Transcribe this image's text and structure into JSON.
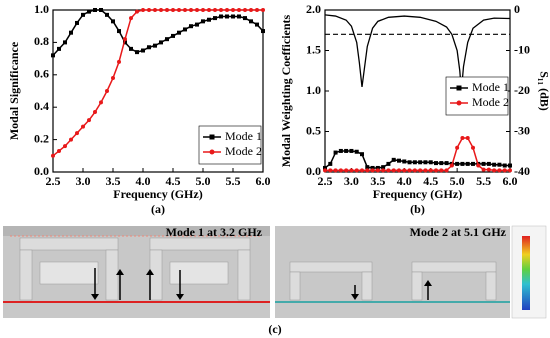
{
  "chart_data": [
    {
      "type": "line",
      "x_label": "Frequency (GHz)",
      "y_label": "Modal Significance",
      "x": [
        2.5,
        2.6,
        2.7,
        2.8,
        2.9,
        3.0,
        3.1,
        3.2,
        3.3,
        3.4,
        3.5,
        3.6,
        3.7,
        3.8,
        3.9,
        4.0,
        4.1,
        4.2,
        4.3,
        4.4,
        4.5,
        4.6,
        4.7,
        4.8,
        4.9,
        5.0,
        5.1,
        5.2,
        5.3,
        5.4,
        5.5,
        5.6,
        5.7,
        5.8,
        5.9,
        6.0
      ],
      "series": [
        {
          "name": "Mode 1",
          "color": "#000000",
          "marker": "square",
          "values": [
            0.72,
            0.76,
            0.8,
            0.86,
            0.92,
            0.97,
            0.99,
            1.0,
            1.0,
            0.97,
            0.93,
            0.87,
            0.8,
            0.76,
            0.74,
            0.75,
            0.77,
            0.78,
            0.8,
            0.82,
            0.84,
            0.86,
            0.88,
            0.9,
            0.91,
            0.93,
            0.94,
            0.95,
            0.96,
            0.96,
            0.96,
            0.96,
            0.95,
            0.93,
            0.91,
            0.87
          ]
        },
        {
          "name": "Mode 2",
          "color": "#e8191a",
          "marker": "circle",
          "values": [
            0.1,
            0.13,
            0.16,
            0.2,
            0.24,
            0.28,
            0.32,
            0.37,
            0.43,
            0.5,
            0.58,
            0.68,
            0.82,
            0.95,
            0.99,
            1.0,
            1.0,
            1.0,
            1.0,
            1.0,
            1.0,
            1.0,
            1.0,
            1.0,
            1.0,
            1.0,
            1.0,
            1.0,
            1.0,
            1.0,
            1.0,
            1.0,
            1.0,
            1.0,
            1.0,
            1.0
          ]
        }
      ],
      "xlim": [
        2.5,
        6.0
      ],
      "xticks": [
        2.5,
        {
          "value": 3,
          "label": "3.0"
        },
        3.5,
        {
          "value": 4,
          "label": "4.0"
        },
        4.5,
        {
          "value": 5,
          "label": "5.0"
        },
        5.5,
        {
          "value": 6,
          "label": "6.0"
        }
      ],
      "ylim": [
        0,
        1
      ],
      "yticks": [
        {
          "value": 0,
          "label": "0.0"
        },
        0.2,
        0.4,
        0.6,
        0.8,
        {
          "value": 1,
          "label": "1.0"
        }
      ],
      "legend": "lower right",
      "panel_label": "(a)"
    },
    {
      "type": "line",
      "x_label": "Frequency (GHz)",
      "y_label": "Modal Weighting Coefficients",
      "y2_label": "S₁₁ (dB)",
      "x": [
        2.5,
        2.6,
        2.7,
        2.8,
        2.9,
        3.0,
        3.1,
        3.2,
        3.3,
        3.4,
        3.5,
        3.6,
        3.7,
        3.8,
        3.9,
        4.0,
        4.1,
        4.2,
        4.3,
        4.4,
        4.5,
        4.6,
        4.7,
        4.8,
        4.9,
        5.0,
        5.1,
        5.2,
        5.3,
        5.4,
        5.5,
        5.6,
        5.7,
        5.8,
        5.9,
        6.0
      ],
      "series": [
        {
          "name": "Mode 1",
          "color": "#000000",
          "marker": "square",
          "values": [
            0.05,
            0.1,
            0.24,
            0.26,
            0.26,
            0.26,
            0.25,
            0.22,
            0.06,
            0.05,
            0.05,
            0.06,
            0.1,
            0.15,
            0.14,
            0.13,
            0.12,
            0.12,
            0.12,
            0.12,
            0.12,
            0.11,
            0.11,
            0.11,
            0.1,
            0.1,
            0.1,
            0.1,
            0.1,
            0.1,
            0.1,
            0.1,
            0.09,
            0.09,
            0.08,
            0.08
          ]
        },
        {
          "name": "Mode 2",
          "color": "#e8191a",
          "marker": "circle",
          "values": [
            0.02,
            0.02,
            0.02,
            0.02,
            0.02,
            0.02,
            0.02,
            0.02,
            0.02,
            0.02,
            0.02,
            0.02,
            0.02,
            0.02,
            0.02,
            0.02,
            0.02,
            0.02,
            0.02,
            0.02,
            0.02,
            0.02,
            0.02,
            0.02,
            0.08,
            0.3,
            0.42,
            0.42,
            0.3,
            0.08,
            0.03,
            0.03,
            0.02,
            0.02,
            0.02,
            0.02
          ]
        },
        {
          "color": "#000000",
          "axis": "y2",
          "x": [
            2.5,
            2.7,
            2.9,
            3.0,
            3.1,
            3.15,
            3.2,
            3.25,
            3.3,
            3.4,
            3.5,
            3.7,
            4.0,
            4.3,
            4.6,
            4.8,
            4.9,
            5.0,
            5.05,
            5.08,
            5.12,
            5.2,
            5.3,
            5.5,
            5.7,
            6.0
          ],
          "values": [
            -1.2,
            -1.5,
            -2.5,
            -4,
            -8,
            -13,
            -19,
            -14,
            -9,
            -4.5,
            -2.8,
            -1.8,
            -1.5,
            -1.8,
            -2.8,
            -4.2,
            -6,
            -10,
            -15,
            -20,
            -14,
            -8,
            -4.5,
            -2.5,
            -2,
            -2.1
          ]
        }
      ],
      "reference_line": {
        "value": -6,
        "axis": "y2"
      },
      "xlim": [
        2.5,
        6.0
      ],
      "xticks": [
        2.5,
        {
          "value": 3,
          "label": "3.0"
        },
        3.5,
        {
          "value": 4,
          "label": "4.0"
        },
        4.5,
        {
          "value": 5,
          "label": "5.0"
        },
        5.5,
        {
          "value": 6,
          "label": "6.0"
        }
      ],
      "ylim": [
        0,
        2
      ],
      "yticks": [
        {
          "value": 0,
          "label": "0.0"
        },
        0.5,
        {
          "value": 1,
          "label": "1.0"
        },
        1.5,
        {
          "value": 2,
          "label": "2.0"
        }
      ],
      "y2lim": [
        -40,
        0
      ],
      "y2ticks": [
        0,
        -10,
        -20,
        -30,
        -40
      ],
      "legend": "center right",
      "panel_label": "(b)"
    }
  ],
  "field_panel": {
    "titles": [
      "Mode 1 at 3.2 GHz",
      "Mode 2 at 5.1 GHz"
    ],
    "panel_label": "(c)"
  }
}
